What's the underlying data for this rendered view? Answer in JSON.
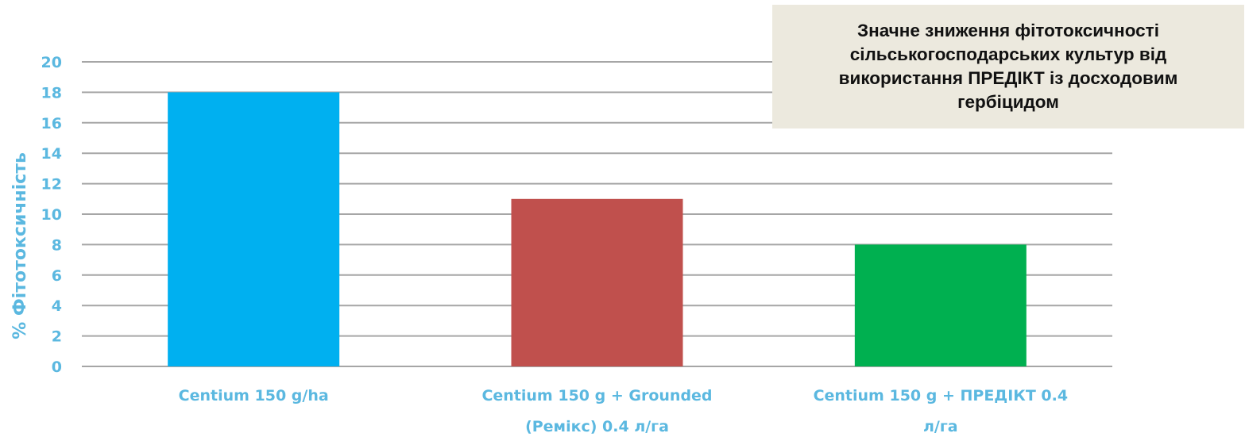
{
  "chart_data": {
    "type": "bar",
    "title": "Значне зниження фітотоксичності сільськогосподарських культур від використання ПРЕДІКТ із досходовим гербіцидом",
    "ylabel": "% Фітотоксичність",
    "xlabel": "",
    "ylim": [
      0,
      20
    ],
    "yticks": [
      "0",
      "2",
      "4",
      "6",
      "8",
      "10",
      "12",
      "14",
      "16",
      "18",
      "20"
    ],
    "categories": [
      [
        "Centium 150 g/ha"
      ],
      [
        "Centium 150 g + Grounded",
        "(Ремікс)  0.4 л/га"
      ],
      [
        "Centium 150 g + ПРЕДІКТ 0.4",
        "л/га"
      ]
    ],
    "values": [
      18,
      11,
      8
    ],
    "bar_colors": [
      "#00b0f0",
      "#c0504d",
      "#00b050"
    ],
    "grid": true,
    "legend": "none"
  },
  "colors": {
    "axis_text": "#5bb8e0",
    "gridline": "#a6a6a6",
    "title_box": "#ece9de"
  }
}
